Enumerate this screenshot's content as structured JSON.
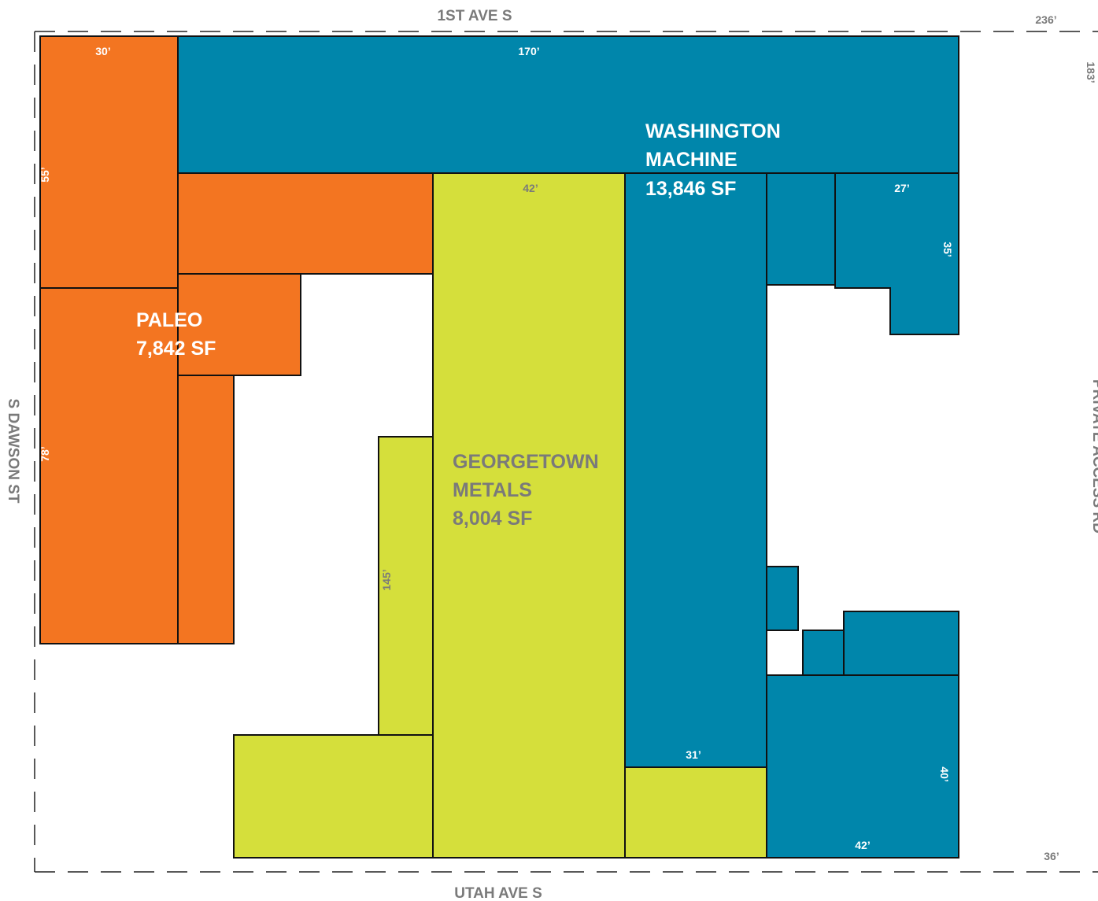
{
  "colors": {
    "paleo": "#f37521",
    "washington": "#0086ab",
    "georgetown": "#d5df3b",
    "street_text": "#7a7a7a",
    "boundary": "#222222"
  },
  "streets": {
    "north": "1ST AVE S",
    "south": "UTAH AVE S",
    "west": "S DAWSON ST",
    "east": "PRIVATE ACCESS RD"
  },
  "tenants": {
    "washington": {
      "line1": "WASHINGTON",
      "line2": "MACHINE",
      "area": "13,846 SF"
    },
    "paleo": {
      "line1": "PALEO",
      "area": "7,842 SF"
    },
    "georgetown": {
      "line1": "GEORGETOWN",
      "line2": "METALS",
      "area": "8,004 SF"
    }
  },
  "dimensions": {
    "site_top": "236’",
    "site_right": "183’",
    "site_bottom_right": "36’",
    "paleo_top": "30’",
    "paleo_upper_side": "55’",
    "paleo_lower_side": "78’",
    "wm_top": "170’",
    "gm_top": "42’",
    "gm_strip": "145’",
    "wm_annex_top": "27’",
    "wm_annex_side": "35’",
    "wm_bottom": "31’",
    "wm_lower_side": "40’",
    "wm_lower_bottom": "42’"
  }
}
